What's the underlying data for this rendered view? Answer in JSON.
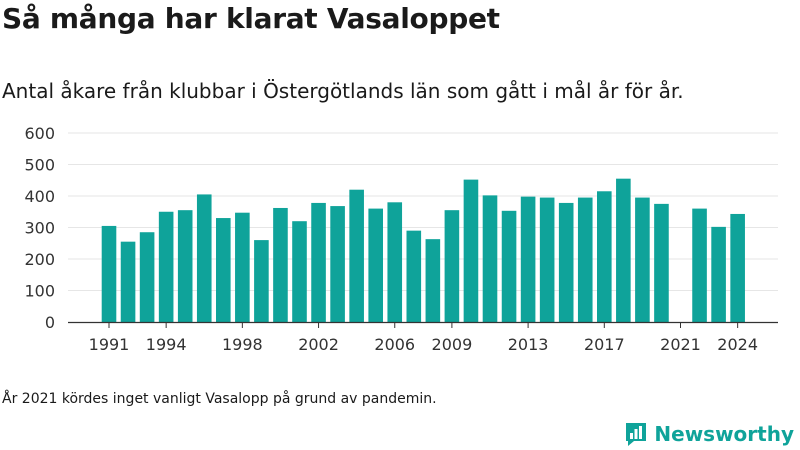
{
  "header": {
    "title": "Så många har klarat Vasaloppet",
    "subtitle": "Antal åkare från klubbar i Östergötlands län som gått i mål år för år."
  },
  "footer": {
    "note": "År 2021 kördes inget vanligt Vasalopp på grund av pandemin.",
    "brand": "Newsworthy",
    "logo_icon": "bar-chart-logo-icon"
  },
  "colors": {
    "bar": "#0fa39a",
    "grid": "#e6e6e6",
    "axis": "#333333",
    "brand": "#0fa39a"
  },
  "chart_data": {
    "type": "bar",
    "title": "Så många har klarat Vasaloppet",
    "subtitle": "Antal åkare från klubbar i Östergötlands län som gått i mål år för år.",
    "xlabel": "",
    "ylabel": "",
    "ylim": [
      0,
      600
    ],
    "yticks": [
      0,
      100,
      200,
      300,
      400,
      500,
      600
    ],
    "xtick_labels": [
      "1991",
      "1994",
      "1998",
      "2002",
      "2006",
      "2009",
      "2013",
      "2017",
      "2021",
      "2024"
    ],
    "grid": true,
    "x": [
      1991,
      1992,
      1993,
      1994,
      1995,
      1996,
      1997,
      1998,
      1999,
      2000,
      2001,
      2002,
      2003,
      2004,
      2005,
      2006,
      2007,
      2008,
      2009,
      2010,
      2011,
      2012,
      2013,
      2014,
      2015,
      2016,
      2017,
      2018,
      2019,
      2020,
      2021,
      2022,
      2023,
      2024
    ],
    "values": [
      305,
      255,
      285,
      350,
      355,
      405,
      330,
      347,
      260,
      362,
      320,
      378,
      368,
      420,
      360,
      380,
      290,
      263,
      355,
      452,
      402,
      353,
      398,
      395,
      378,
      395,
      415,
      455,
      395,
      375,
      null,
      360,
      302,
      343
    ]
  }
}
